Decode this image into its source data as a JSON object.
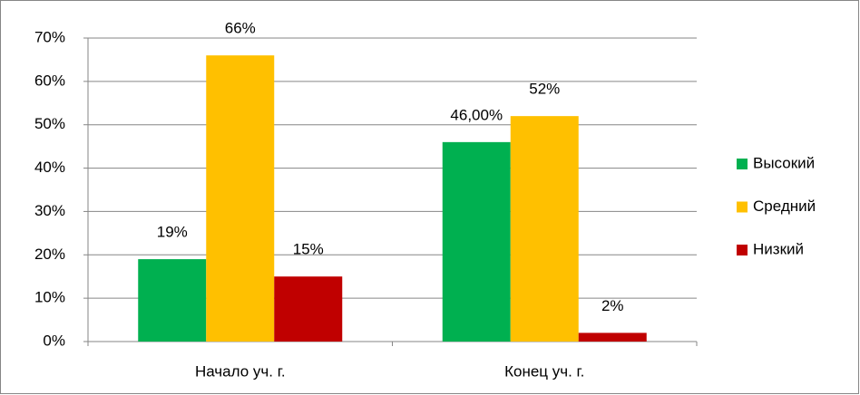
{
  "chart_data": {
    "type": "bar",
    "categories": [
      "Начало уч. г.",
      "Конец уч. г."
    ],
    "series": [
      {
        "name": "Высокий",
        "color": "#00b050",
        "values": [
          19,
          46
        ],
        "value_labels": [
          "19%",
          "46,00%"
        ]
      },
      {
        "name": "Средний",
        "color": "#ffc000",
        "values": [
          66,
          52
        ],
        "value_labels": [
          "66%",
          "52%"
        ]
      },
      {
        "name": "Низкий",
        "color": "#c00000",
        "values": [
          15,
          2
        ],
        "value_labels": [
          "15%",
          "2%"
        ]
      }
    ],
    "ylim": [
      0,
      70
    ],
    "yticks": [
      {
        "value": 0,
        "label": "0%"
      },
      {
        "value": 10,
        "label": "10%"
      },
      {
        "value": 20,
        "label": "20%"
      },
      {
        "value": 30,
        "label": "30%"
      },
      {
        "value": 40,
        "label": "40%"
      },
      {
        "value": 50,
        "label": "50%"
      },
      {
        "value": 60,
        "label": "60%"
      },
      {
        "value": 70,
        "label": "70%"
      }
    ],
    "grid": true,
    "legend": "right"
  }
}
